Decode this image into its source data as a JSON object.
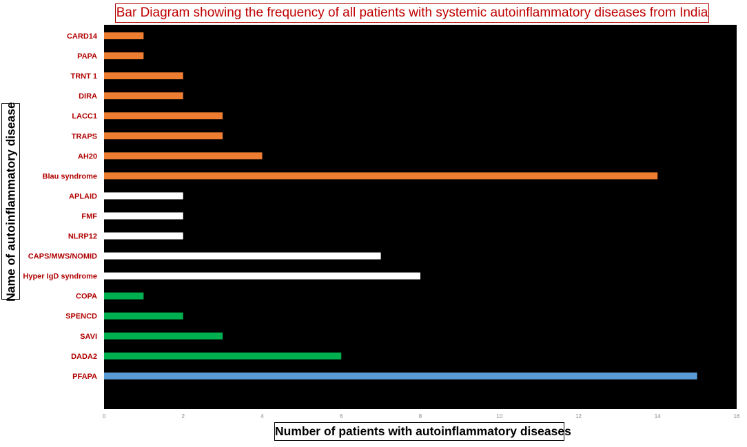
{
  "chart_data": {
    "type": "bar",
    "orientation": "horizontal",
    "title": "Bar Diagram showing the frequency of all patients with systemic autoinflammatory diseases from India",
    "xlabel": "Number of patients with  autoinflammatory diseases",
    "ylabel": "Name of autoinflammatory disease",
    "xlim": [
      0,
      16
    ],
    "xticks": [
      "0",
      "2",
      "4",
      "6",
      "8",
      "10",
      "12",
      "14",
      "16"
    ],
    "grid": false,
    "legend": "none",
    "background": "#000000",
    "categories": [
      "CARD14",
      "PAPA",
      "TRNT 1",
      "DIRA",
      "LACC1",
      "TRAPS",
      "AH20",
      "Blau syndrome",
      "APLAID",
      "FMF",
      "NLRP12",
      "CAPS/MWS/NOMID",
      "Hyper IgD syndrome",
      "COPA",
      "SPENCD",
      "SAVI",
      "DADA2",
      "PFAPA"
    ],
    "values": [
      1,
      1,
      2,
      2,
      3,
      3,
      4,
      14,
      2,
      2,
      2,
      7,
      8,
      1,
      2,
      3,
      6,
      15
    ],
    "bar_colors": [
      "#ed7d31",
      "#ed7d31",
      "#ed7d31",
      "#ed7d31",
      "#ed7d31",
      "#ed7d31",
      "#ed7d31",
      "#ed7d31",
      "#ffffff",
      "#ffffff",
      "#ffffff",
      "#ffffff",
      "#ffffff",
      "#00b050",
      "#00b050",
      "#00b050",
      "#00b050",
      "#5b9bd5"
    ],
    "label_color": "#b00000"
  }
}
